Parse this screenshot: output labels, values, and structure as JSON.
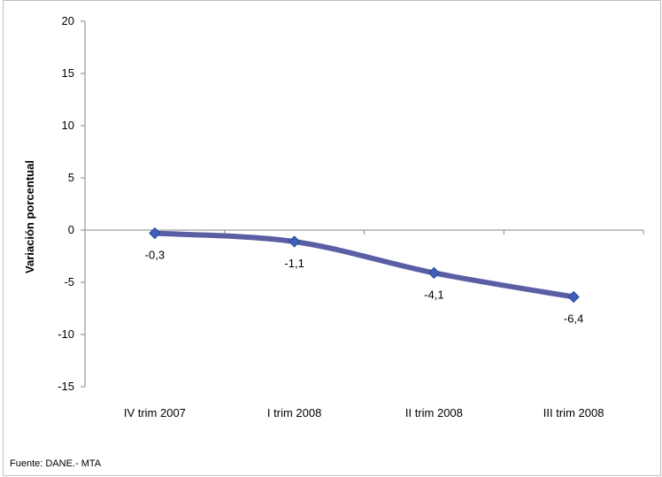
{
  "chart_data": {
    "type": "line",
    "title": "",
    "xlabel": "",
    "ylabel": "Variación porcentual",
    "categories": [
      "IV trim 2007",
      "I trim 2008",
      "II trim 2008",
      "III trim 2008"
    ],
    "series": [
      {
        "values": [
          -0.3,
          -1.1,
          -4.1,
          -6.4
        ]
      }
    ],
    "data_labels": [
      "-0,3",
      "-1,1",
      "-4,1",
      "-6,4"
    ],
    "yticks": [
      20,
      15,
      10,
      5,
      0,
      -5,
      -10,
      -15
    ],
    "ylim": [
      -15,
      20
    ],
    "grid": false,
    "legend": "none",
    "colors": {
      "line": "#5a5fa3",
      "marker": "#3f5fb8",
      "axis": "#868686"
    }
  },
  "source_note": "Fuente: DANE.- MTA"
}
